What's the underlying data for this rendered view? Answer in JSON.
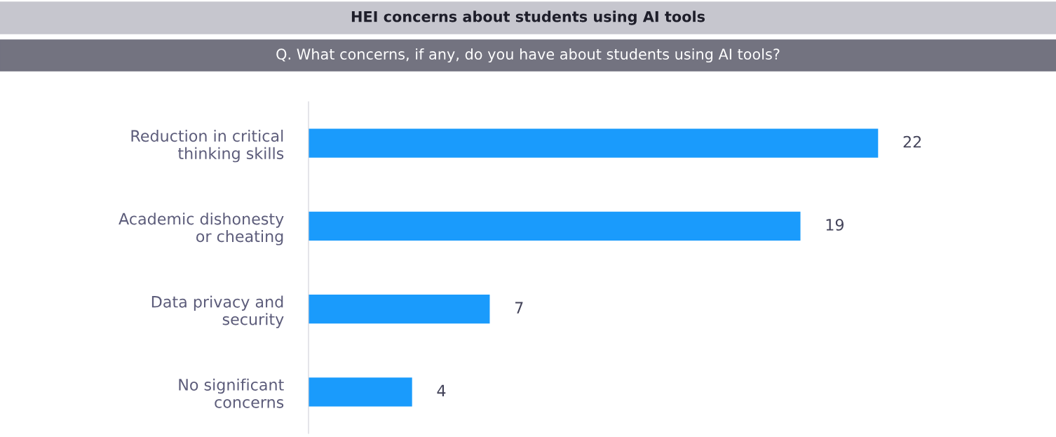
{
  "chart_data": {
    "type": "bar",
    "orientation": "horizontal",
    "title": "HEI concerns about students using AI tools",
    "subtitle": "Q. What concerns, if any, do you have about students using AI tools?",
    "categories": [
      "Reduction in critical\nthinking skills",
      "Academic dishonesty\nor cheating",
      "Data privacy and\nsecurity",
      "No significant\nconcerns"
    ],
    "values": [
      22,
      19,
      7,
      4
    ],
    "color": "#1a9bfc",
    "data_labels": true,
    "grid": false,
    "legend": false
  }
}
